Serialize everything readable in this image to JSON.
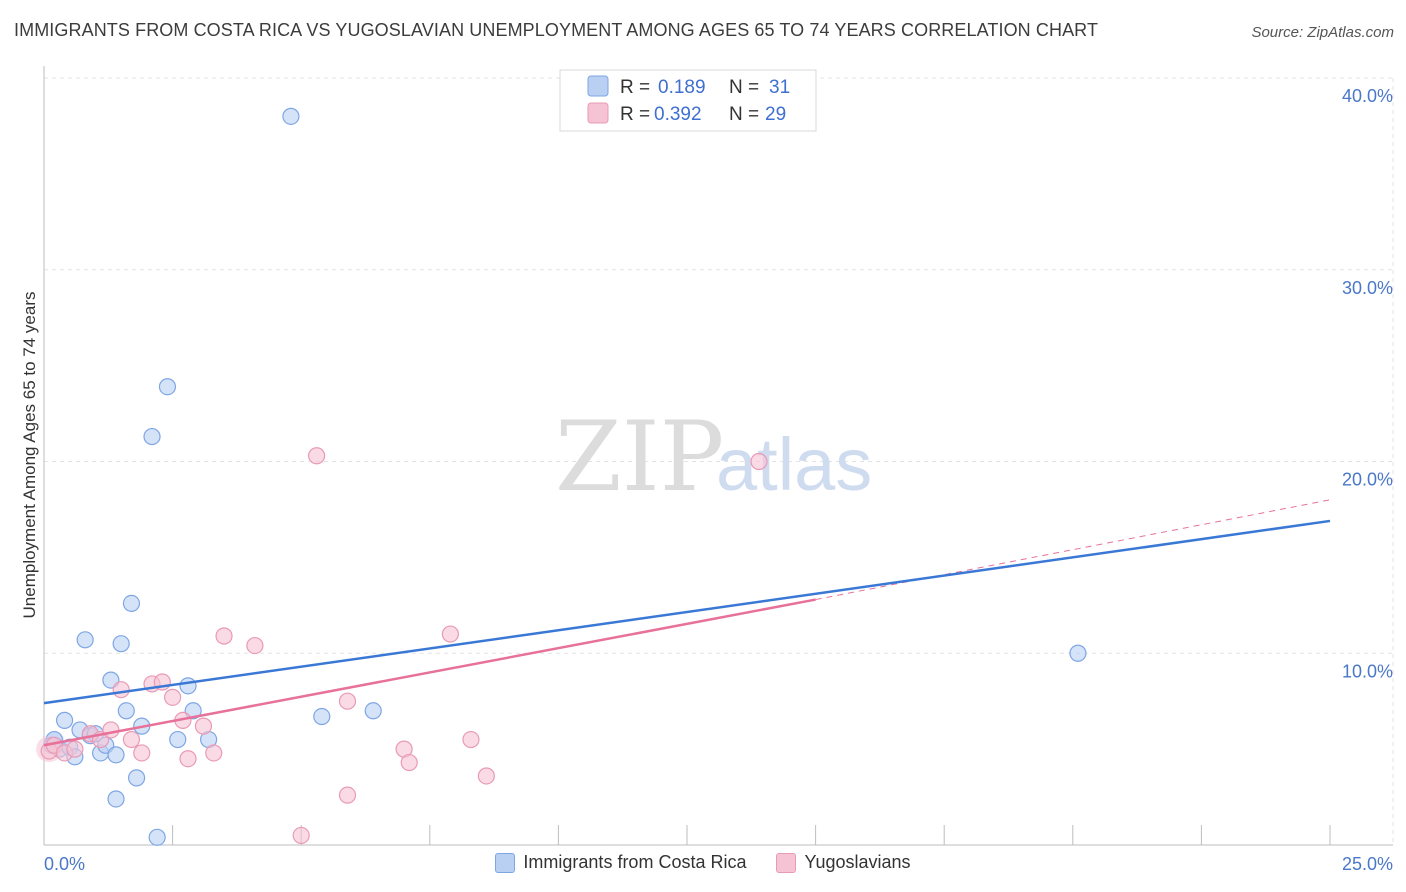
{
  "header": {
    "title": "IMMIGRANTS FROM COSTA RICA VS YUGOSLAVIAN UNEMPLOYMENT AMONG AGES 65 TO 74 YEARS CORRELATION CHART",
    "source": "Source: ZipAtlas.com"
  },
  "watermark": {
    "zip": "ZIP",
    "atlas": "atlas"
  },
  "colors": {
    "blue": "#3a78d6",
    "blue_fill": "#b9d0f3",
    "pink": "#e8719a",
    "pink_fill": "#f6c3d4"
  },
  "legend": {
    "r_label": "R =",
    "n_label": "N =",
    "series1": {
      "r": "0.189",
      "n": "31"
    },
    "series2": {
      "r": "0.392",
      "n": "29"
    }
  },
  "bottom_legend": {
    "series1": "Immigrants from Costa Rica",
    "series2": "Yugoslavians"
  },
  "chart_data": {
    "type": "scatter",
    "title": "IMMIGRANTS FROM COSTA RICA VS YUGOSLAVIAN UNEMPLOYMENT AMONG AGES 65 TO 74 YEARS CORRELATION CHART",
    "xlabel": "",
    "ylabel": "Unemployment Among Ages 65 to 74 years",
    "xlim": [
      0,
      25
    ],
    "ylim": [
      0,
      40
    ],
    "x_tick_labels": {
      "min": "0.0%",
      "max": "25.0%"
    },
    "y_ticks": [
      10,
      20,
      30,
      40
    ],
    "y_tick_labels": [
      "10.0%",
      "20.0%",
      "30.0%",
      "40.0%"
    ],
    "series": [
      {
        "name": "Immigrants from Costa Rica",
        "r": 0.189,
        "n": 31,
        "trend": {
          "x": [
            0,
            25
          ],
          "y": [
            7.4,
            16.9
          ]
        },
        "points": [
          [
            0.2,
            5.5
          ],
          [
            0.3,
            5.0
          ],
          [
            0.4,
            6.5
          ],
          [
            0.5,
            5.1
          ],
          [
            0.6,
            4.6
          ],
          [
            0.7,
            6.0
          ],
          [
            0.8,
            10.7
          ],
          [
            0.9,
            5.7
          ],
          [
            1.0,
            5.8
          ],
          [
            1.1,
            4.8
          ],
          [
            1.2,
            5.2
          ],
          [
            1.3,
            8.6
          ],
          [
            1.4,
            4.7
          ],
          [
            1.5,
            10.5
          ],
          [
            1.6,
            7.0
          ],
          [
            1.7,
            12.6
          ],
          [
            1.8,
            3.5
          ],
          [
            1.9,
            6.2
          ],
          [
            2.1,
            21.3
          ],
          [
            2.4,
            23.9
          ],
          [
            1.4,
            2.4
          ],
          [
            2.2,
            0.4
          ],
          [
            2.6,
            5.5
          ],
          [
            2.8,
            8.3
          ],
          [
            2.9,
            7.0
          ],
          [
            3.2,
            5.5
          ],
          [
            4.8,
            38.0
          ],
          [
            5.4,
            6.7
          ],
          [
            6.4,
            7.0
          ],
          [
            20.1,
            10.0
          ],
          [
            0.15,
            5.2
          ]
        ]
      },
      {
        "name": "Yugoslavians",
        "r": 0.392,
        "n": 29,
        "trend": {
          "x": [
            0,
            15
          ],
          "y": [
            5.2,
            12.8
          ]
        },
        "trend_extension": {
          "x": [
            15,
            25
          ],
          "y": [
            12.8,
            18.0
          ]
        },
        "points": [
          [
            0.1,
            4.9
          ],
          [
            0.2,
            5.2
          ],
          [
            0.4,
            4.8
          ],
          [
            0.6,
            5.0
          ],
          [
            0.9,
            5.8
          ],
          [
            1.1,
            5.5
          ],
          [
            1.3,
            6.0
          ],
          [
            1.5,
            8.1
          ],
          [
            1.7,
            5.5
          ],
          [
            1.9,
            4.8
          ],
          [
            2.1,
            8.4
          ],
          [
            2.3,
            8.5
          ],
          [
            2.5,
            7.7
          ],
          [
            2.7,
            6.5
          ],
          [
            2.8,
            4.5
          ],
          [
            3.1,
            6.2
          ],
          [
            3.3,
            4.8
          ],
          [
            3.5,
            10.9
          ],
          [
            4.1,
            10.4
          ],
          [
            5.0,
            0.5
          ],
          [
            5.3,
            20.3
          ],
          [
            5.9,
            7.5
          ],
          [
            5.9,
            2.6
          ],
          [
            7.0,
            5.0
          ],
          [
            7.1,
            4.3
          ],
          [
            7.9,
            11.0
          ],
          [
            8.3,
            5.5
          ],
          [
            8.6,
            3.6
          ],
          [
            13.9,
            20.0
          ]
        ]
      }
    ]
  }
}
